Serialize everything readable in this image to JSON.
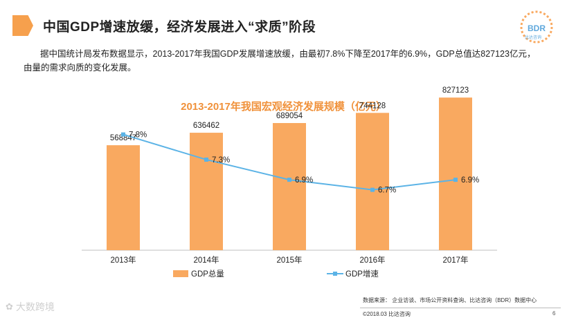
{
  "header": {
    "title": "中国GDP增速放缓，经济发展进入“求质”阶段"
  },
  "logo": {
    "text": "BDR",
    "sub": "比达咨询"
  },
  "intro": "据中国统计局发布数据显示，2013-2017年我国GDP发展增速放缓，由最初7.8%下降至2017年的6.9%，GDP总值达827123亿元，由量的需求向质的变化发展。",
  "colors": {
    "bar": "#F9A960",
    "line": "#5BB3E6",
    "title_accent": "#F0913A"
  },
  "chart_data": {
    "type": "bar",
    "title": "2013-2017年我国宏观经济发展规模（亿元）",
    "categories": [
      "2013年",
      "2014年",
      "2015年",
      "2016年",
      "2017年"
    ],
    "series": [
      {
        "name": "GDP总量",
        "type": "bar",
        "values": [
          568847,
          636462,
          689054,
          744128,
          827123
        ],
        "labels": [
          "568847",
          "636462",
          "689054",
          "744128",
          "827123"
        ]
      },
      {
        "name": "GDP增速",
        "type": "line",
        "values": [
          7.8,
          7.3,
          6.9,
          6.7,
          6.9
        ],
        "labels": [
          "7.8%",
          "7.3%",
          "6.9%",
          "6.7%",
          "6.9%"
        ]
      }
    ],
    "legend": [
      "GDP总量",
      "GDP增速"
    ],
    "legend_position": "bottom",
    "bar_ylim": [
      0,
      1000000
    ],
    "line_ylim": [
      5.5,
      8.0
    ],
    "grid": false
  },
  "footer": {
    "source": "数据来源： 企业访谈、市场公开资料查询、比达咨询（BDR）数据中心",
    "copyright": "©2018.03 比达咨询",
    "page": "6",
    "watermark": "大数跨境"
  }
}
